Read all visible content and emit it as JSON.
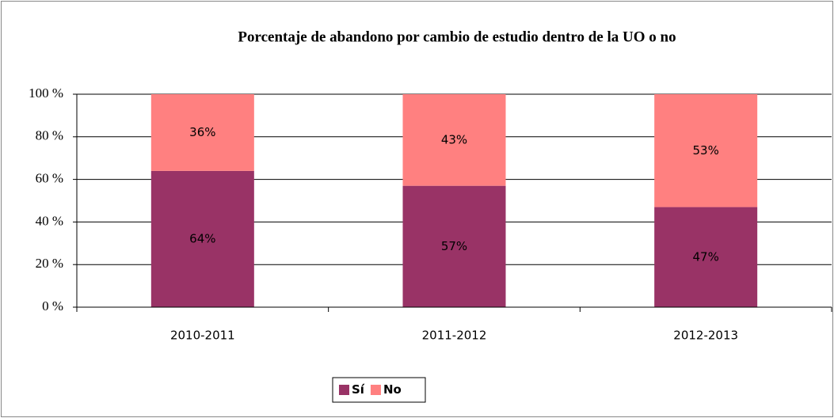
{
  "chart_data": {
    "type": "bar",
    "stacked": true,
    "title": "Porcentaje de abandono por cambio de estudio dentro de la UO o no",
    "categories": [
      "2010-2011",
      "2011-2012",
      "2012-2013"
    ],
    "series": [
      {
        "name": "Sí",
        "color": "#993366",
        "values": [
          64,
          57,
          47
        ],
        "value_labels": [
          "64%",
          "57%",
          "47%"
        ]
      },
      {
        "name": "No",
        "color": "#ff8080",
        "values": [
          36,
          43,
          53
        ],
        "value_labels": [
          "36%",
          "43%",
          "53%"
        ]
      }
    ],
    "ylim": [
      0,
      100
    ],
    "yticks": [
      {
        "value": 0,
        "label": "0 %"
      },
      {
        "value": 20,
        "label": "20 %"
      },
      {
        "value": 40,
        "label": "40 %"
      },
      {
        "value": 60,
        "label": "60 %"
      },
      {
        "value": 80,
        "label": "80 %"
      },
      {
        "value": 100,
        "label": "100 %"
      }
    ],
    "grid": true,
    "legend": "bottom"
  }
}
